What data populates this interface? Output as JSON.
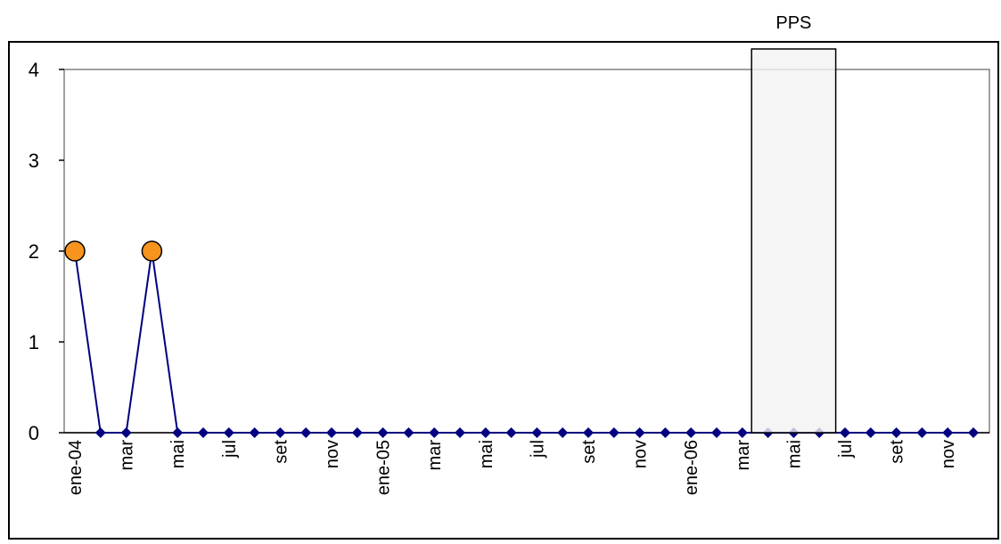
{
  "chart_data": {
    "type": "line",
    "title": "",
    "xlabel": "",
    "ylabel": "",
    "ylim": [
      0,
      4
    ],
    "yticks": [
      0,
      1,
      2,
      3,
      4
    ],
    "grid": false,
    "legend": "none",
    "x": [
      "ene-04",
      "feb-04",
      "mar-04",
      "abr-04",
      "mai-04",
      "jun-04",
      "jul-04",
      "ago-04",
      "set-04",
      "oct-04",
      "nov-04",
      "dic-04",
      "ene-05",
      "feb-05",
      "mar-05",
      "abr-05",
      "mai-05",
      "jun-05",
      "jul-05",
      "ago-05",
      "set-05",
      "oct-05",
      "nov-05",
      "dic-05",
      "ene-06",
      "feb-06",
      "mar-06",
      "abr-06",
      "mai-06",
      "jun-06",
      "jul-06",
      "ago-06",
      "set-06",
      "oct-06",
      "nov-06",
      "dic-06"
    ],
    "tick_labels": [
      "ene-04",
      "",
      "mar",
      "",
      "mai",
      "",
      "jul",
      "",
      "set",
      "",
      "nov",
      "",
      "ene-05",
      "",
      "mar",
      "",
      "mai",
      "",
      "jul",
      "",
      "set",
      "",
      "nov",
      "",
      "ene-06",
      "",
      "mar",
      "",
      "mai",
      "",
      "jul",
      "",
      "set",
      "",
      "nov",
      ""
    ],
    "series": [
      {
        "values": [
          2,
          0,
          0,
          2,
          0,
          0,
          0,
          0,
          0,
          0,
          0,
          0,
          0,
          0,
          0,
          0,
          0,
          0,
          0,
          0,
          0,
          0,
          0,
          0,
          0,
          0,
          0,
          0,
          0,
          0,
          0,
          0,
          0,
          0,
          0,
          0
        ],
        "line_color": "#000080",
        "marker_color": "#000080",
        "highlight_color": "#F7941D"
      }
    ],
    "highlighted_indices": [
      0,
      3
    ],
    "annotations": [
      {
        "label": "PPS",
        "x_start": "abr-06",
        "x_end": "jun-06",
        "fill": "#F2F2F2"
      }
    ]
  }
}
